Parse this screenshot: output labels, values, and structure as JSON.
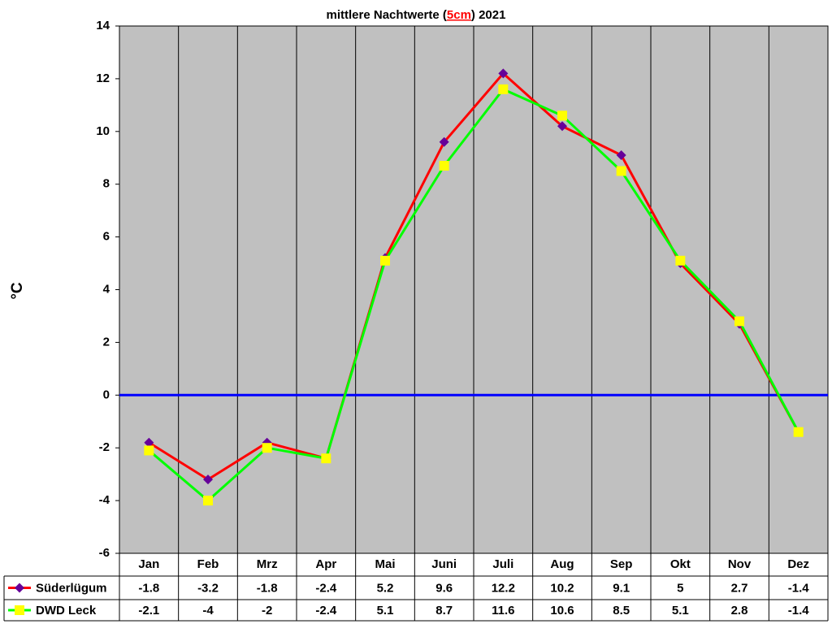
{
  "chart_data": {
    "type": "line",
    "title_parts": [
      "mittlere Nachtwerte (",
      "5cm",
      ") 2021"
    ],
    "title_highlight_color": "#ff0000",
    "y_label": "°C",
    "categories": [
      "Jan",
      "Feb",
      "Mrz",
      "Apr",
      "Mai",
      "Juni",
      "Juli",
      "Aug",
      "Sep",
      "Okt",
      "Nov",
      "Dez"
    ],
    "series": [
      {
        "name": "Süderlügum",
        "color": "#ff0000",
        "marker": "diamond",
        "marker_color": "#660099",
        "values": [
          -1.8,
          -3.2,
          -1.8,
          -2.4,
          5.2,
          9.6,
          12.2,
          10.2,
          9.1,
          5,
          2.7,
          -1.4
        ]
      },
      {
        "name": "DWD Leck",
        "color": "#00ff00",
        "marker": "square",
        "marker_color": "#ffff00",
        "values": [
          -2.1,
          -4,
          -2,
          -2.4,
          5.1,
          8.7,
          11.6,
          10.6,
          8.5,
          5.1,
          2.8,
          -1.4
        ]
      }
    ],
    "ylim": [
      -6,
      14
    ],
    "yticks": [
      -6,
      -4,
      -2,
      0,
      2,
      4,
      6,
      8,
      10,
      12,
      14
    ],
    "grid": true,
    "plot_background": "#c0c0c0",
    "zero_line_color": "#0000ff",
    "data_table": true
  }
}
